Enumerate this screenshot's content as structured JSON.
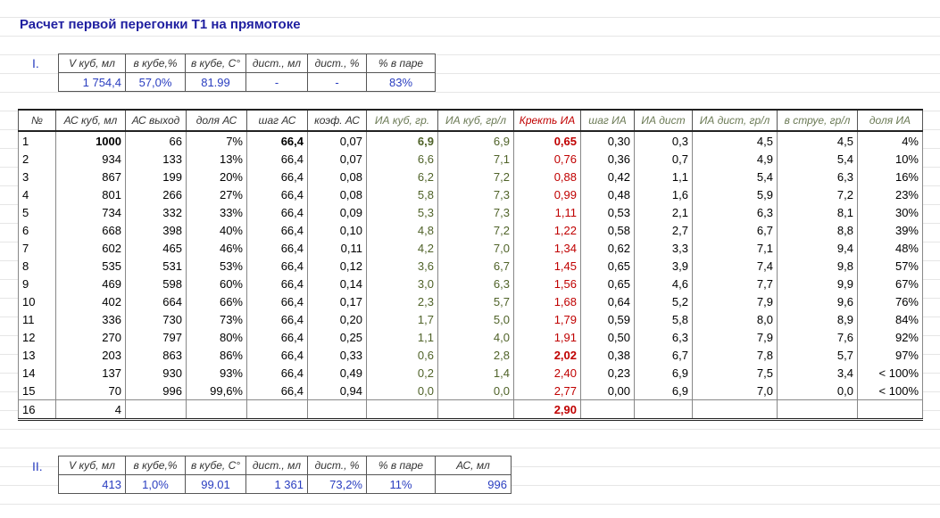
{
  "header": {
    "title": "Расчет первой перегонки Т1 на прямотоке"
  },
  "section1": {
    "label": "I.",
    "headers": [
      "V куб, мл",
      "в кубе,%",
      "в кубе, С°",
      "дист., мл",
      "дист., %",
      "% в паре"
    ],
    "values": [
      "1 754,4",
      "57,0%",
      "81.99",
      "-",
      "-",
      "83%"
    ]
  },
  "table": {
    "headers": [
      "№",
      "АС куб, мл",
      "АС выход",
      "доля АС",
      "шаг АС",
      "коэф. АС",
      "ИА куб, гр.",
      "ИА куб, гр/л",
      "Кректь ИА",
      "шаг ИА",
      "ИА дист",
      "ИА дист, гр/л",
      "в струе, гр/л",
      "доля ИА"
    ],
    "rows": [
      [
        "1",
        "1000",
        "66",
        "7%",
        "66,4",
        "0,07",
        "6,9",
        "6,9",
        "0,65",
        "0,30",
        "0,3",
        "4,5",
        "4,5",
        "4%"
      ],
      [
        "2",
        "934",
        "133",
        "13%",
        "66,4",
        "0,07",
        "6,6",
        "7,1",
        "0,76",
        "0,36",
        "0,7",
        "4,9",
        "5,4",
        "10%"
      ],
      [
        "3",
        "867",
        "199",
        "20%",
        "66,4",
        "0,08",
        "6,2",
        "7,2",
        "0,88",
        "0,42",
        "1,1",
        "5,4",
        "6,3",
        "16%"
      ],
      [
        "4",
        "801",
        "266",
        "27%",
        "66,4",
        "0,08",
        "5,8",
        "7,3",
        "0,99",
        "0,48",
        "1,6",
        "5,9",
        "7,2",
        "23%"
      ],
      [
        "5",
        "734",
        "332",
        "33%",
        "66,4",
        "0,09",
        "5,3",
        "7,3",
        "1,11",
        "0,53",
        "2,1",
        "6,3",
        "8,1",
        "30%"
      ],
      [
        "6",
        "668",
        "398",
        "40%",
        "66,4",
        "0,10",
        "4,8",
        "7,2",
        "1,22",
        "0,58",
        "2,7",
        "6,7",
        "8,8",
        "39%"
      ],
      [
        "7",
        "602",
        "465",
        "46%",
        "66,4",
        "0,11",
        "4,2",
        "7,0",
        "1,34",
        "0,62",
        "3,3",
        "7,1",
        "9,4",
        "48%"
      ],
      [
        "8",
        "535",
        "531",
        "53%",
        "66,4",
        "0,12",
        "3,6",
        "6,7",
        "1,45",
        "0,65",
        "3,9",
        "7,4",
        "9,8",
        "57%"
      ],
      [
        "9",
        "469",
        "598",
        "60%",
        "66,4",
        "0,14",
        "3,0",
        "6,3",
        "1,56",
        "0,65",
        "4,6",
        "7,7",
        "9,9",
        "67%"
      ],
      [
        "10",
        "402",
        "664",
        "66%",
        "66,4",
        "0,17",
        "2,3",
        "5,7",
        "1,68",
        "0,64",
        "5,2",
        "7,9",
        "9,6",
        "76%"
      ],
      [
        "11",
        "336",
        "730",
        "73%",
        "66,4",
        "0,20",
        "1,7",
        "5,0",
        "1,79",
        "0,59",
        "5,8",
        "8,0",
        "8,9",
        "84%"
      ],
      [
        "12",
        "270",
        "797",
        "80%",
        "66,4",
        "0,25",
        "1,1",
        "4,0",
        "1,91",
        "0,50",
        "6,3",
        "7,9",
        "7,6",
        "92%"
      ],
      [
        "13",
        "203",
        "863",
        "86%",
        "66,4",
        "0,33",
        "0,6",
        "2,8",
        "2,02",
        "0,38",
        "6,7",
        "7,8",
        "5,7",
        "97%"
      ],
      [
        "14",
        "137",
        "930",
        "93%",
        "66,4",
        "0,49",
        "0,2",
        "1,4",
        "2,40",
        "0,23",
        "6,9",
        "7,5",
        "3,4",
        "< 100%"
      ],
      [
        "15",
        "70",
        "996",
        "99,6%",
        "66,4",
        "0,94",
        "0,0",
        "0,0",
        "2,77",
        "0,00",
        "6,9",
        "7,0",
        "0,0",
        "< 100%"
      ],
      [
        "16",
        "4",
        null,
        null,
        null,
        null,
        null,
        null,
        "2,90",
        null,
        null,
        null,
        null,
        null
      ]
    ],
    "bold": [
      [
        0,
        1
      ],
      [
        0,
        4
      ],
      [
        0,
        6
      ],
      [
        0,
        8
      ],
      [
        12,
        8
      ],
      [
        15,
        8
      ]
    ]
  },
  "section2": {
    "label": "II.",
    "headers": [
      "V куб, мл",
      "в кубе,%",
      "в кубе, С°",
      "дист., мл",
      "дист., %",
      "% в паре",
      "АС, мл"
    ],
    "values": [
      "413",
      "1,0%",
      "99.01",
      "1 361",
      "73,2%",
      "11%",
      "996"
    ]
  }
}
